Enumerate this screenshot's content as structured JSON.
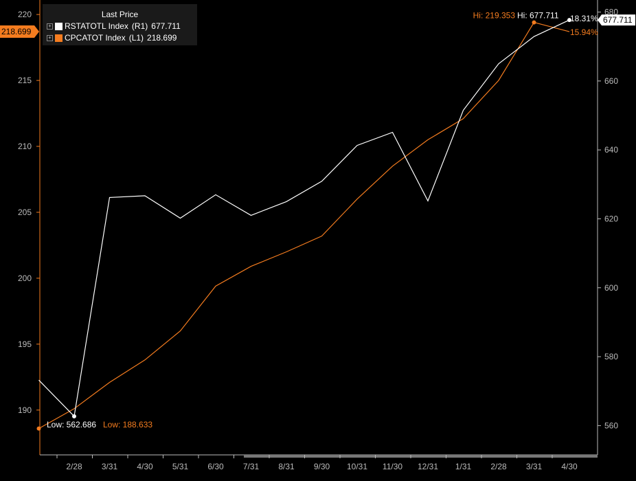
{
  "chart_data": {
    "type": "line",
    "legend_title": "Last Price",
    "legend_placement": "top-left",
    "grid": false,
    "x_ticks": [
      "2/28",
      "3/31",
      "4/30",
      "5/31",
      "6/30",
      "7/31",
      "8/31",
      "9/30",
      "10/31",
      "11/30",
      "12/31",
      "1/31",
      "2/28",
      "3/31",
      "4/30"
    ],
    "left_axis": {
      "ticks": [
        190,
        195,
        200,
        205,
        210,
        215,
        220
      ],
      "ylim": [
        186.6,
        221.1
      ]
    },
    "right_axis": {
      "ticks": [
        560,
        580,
        600,
        620,
        640,
        660,
        680
      ],
      "ylim": [
        551.5,
        683.5
      ]
    },
    "series": [
      {
        "name": "RSTATOTL Index",
        "axis_label": "(R1)",
        "axis": "right",
        "color": "#ffffff",
        "last": "677.711",
        "x_index": [
          -1,
          0,
          1,
          2,
          3,
          4,
          5,
          6,
          7,
          8,
          9,
          10,
          11,
          12,
          13,
          14
        ],
        "values": [
          573.2,
          562.7,
          626.2,
          626.7,
          620.2,
          627.0,
          621.0,
          625.0,
          630.9,
          641.3,
          645.1,
          625.2,
          651.5,
          665.0,
          672.9,
          677.7
        ],
        "low_label": "Low:",
        "low_value": "562.686",
        "hi_label": "Hi:",
        "hi_value": "677.711",
        "pct": "18.31%"
      },
      {
        "name": "CPCATOT Index",
        "axis_label": "(L1)",
        "axis": "left",
        "color": "#f47c1f",
        "last": "218.699",
        "x_index": [
          -1,
          0,
          1,
          2,
          3,
          4,
          5,
          6,
          7,
          8,
          9,
          10,
          11,
          12,
          13,
          14
        ],
        "values": [
          188.6,
          190.1,
          192.1,
          193.8,
          196.0,
          199.4,
          200.9,
          202.0,
          203.2,
          206.0,
          208.5,
          210.5,
          212.1,
          215.0,
          219.4,
          218.7
        ],
        "low_label": "Low:",
        "low_value": "188.633",
        "hi_label": "Hi:",
        "hi_value": "219.353",
        "pct": "15.94%"
      }
    ]
  }
}
